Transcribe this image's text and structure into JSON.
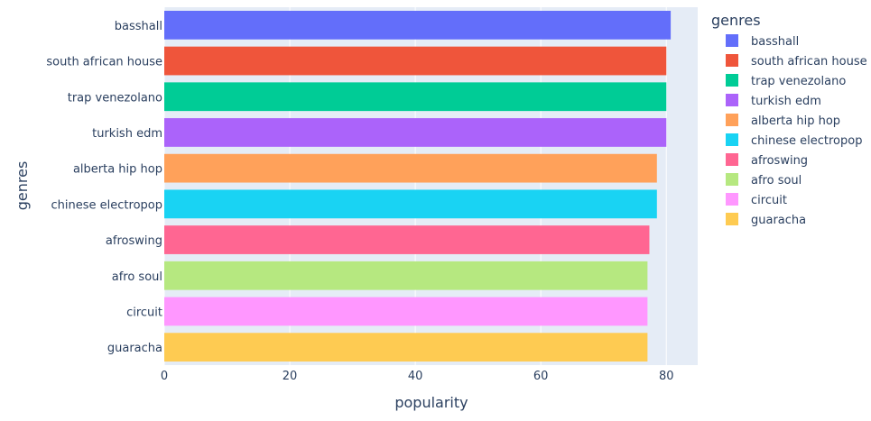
{
  "chart_data": {
    "type": "bar",
    "orientation": "horizontal",
    "title": "",
    "xlabel": "popularity",
    "ylabel": "genres",
    "xlim": [
      0,
      85
    ],
    "xticks": [
      0,
      20,
      40,
      60,
      80
    ],
    "grid": true,
    "legend": {
      "title": "genres",
      "placement": "right"
    },
    "categories": [
      "basshall",
      "south african house",
      "trap venezolano",
      "turkish edm",
      "alberta hip hop",
      "chinese electropop",
      "afroswing",
      "afro soul",
      "circuit",
      "guaracha"
    ],
    "values": [
      80.7,
      80.0,
      80.0,
      80.0,
      78.5,
      78.5,
      77.3,
      77.0,
      77.0,
      77.0
    ],
    "colors": [
      "#636efa",
      "#EF553B",
      "#00cc96",
      "#ab63fa",
      "#FFA15A",
      "#19d3f3",
      "#FF6692",
      "#B6E880",
      "#FF97FF",
      "#FECB52"
    ]
  }
}
